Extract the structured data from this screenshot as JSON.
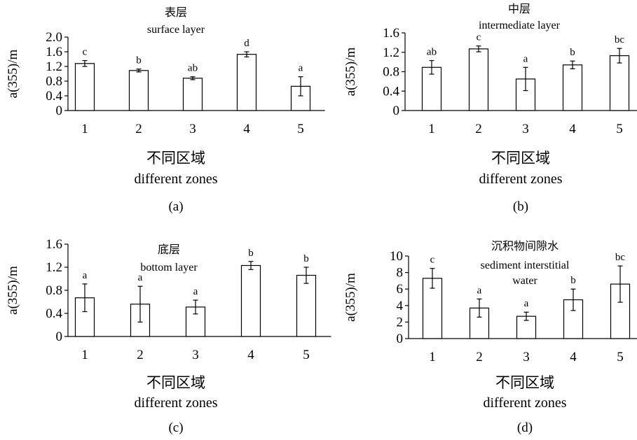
{
  "chart_data": [
    {
      "panel": "(a)",
      "type": "bar",
      "title": "表层",
      "title_en": "surface layer",
      "xlabel": "不同区域",
      "xlabel_en": "different zones",
      "ylabel": "a(355)/m",
      "categories": [
        "1",
        "2",
        "3",
        "4",
        "5"
      ],
      "values": [
        1.28,
        1.09,
        0.88,
        1.53,
        0.66
      ],
      "errors": [
        0.08,
        0.04,
        0.04,
        0.07,
        0.26
      ],
      "significance": [
        "c",
        "b",
        "ab",
        "d",
        "a"
      ],
      "ylim": [
        0,
        2.0
      ],
      "yticks": [
        "0",
        "0.4",
        "0.8",
        "1.2",
        "1.6",
        "2.0"
      ],
      "grid": false,
      "legend": "none"
    },
    {
      "panel": "(b)",
      "type": "bar",
      "title": "中层",
      "title_en": "intermediate layer",
      "xlabel": "不同区域",
      "xlabel_en": "different zones",
      "ylabel": "a(355)/m",
      "categories": [
        "1",
        "2",
        "3",
        "4",
        "5"
      ],
      "values": [
        0.89,
        1.27,
        0.65,
        0.94,
        1.13
      ],
      "errors": [
        0.14,
        0.06,
        0.24,
        0.08,
        0.15
      ],
      "significance": [
        "ab",
        "c",
        "a",
        "b",
        "bc"
      ],
      "ylim": [
        0,
        1.6
      ],
      "yticks": [
        "0",
        "0.4",
        "0.8",
        "1.2",
        "1.6"
      ],
      "grid": false,
      "legend": "none"
    },
    {
      "panel": "(c)",
      "type": "bar",
      "title": "底层",
      "title_en": "bottom layer",
      "xlabel": "不同区域",
      "xlabel_en": "different zones",
      "ylabel": "a(355)/m",
      "categories": [
        "1",
        "2",
        "3",
        "4",
        "5"
      ],
      "values": [
        0.67,
        0.56,
        0.51,
        1.23,
        1.06
      ],
      "errors": [
        0.24,
        0.31,
        0.12,
        0.07,
        0.14
      ],
      "significance": [
        "a",
        "a",
        "a",
        "b",
        "b"
      ],
      "ylim": [
        0,
        1.6
      ],
      "yticks": [
        "0",
        "0.4",
        "0.8",
        "1.2",
        "1.6"
      ],
      "grid": false,
      "legend": "none"
    },
    {
      "panel": "(d)",
      "type": "bar",
      "title": "沉积物间隙水",
      "title_en": "sediment interstitial water",
      "xlabel": "不同区域",
      "xlabel_en": "different zones",
      "ylabel": "a(355)/m",
      "categories": [
        "1",
        "2",
        "3",
        "4",
        "5"
      ],
      "values": [
        7.3,
        3.7,
        2.7,
        4.7,
        6.6
      ],
      "errors": [
        1.2,
        1.1,
        0.5,
        1.3,
        2.2
      ],
      "significance": [
        "c",
        "a",
        "a",
        "b",
        "bc"
      ],
      "ylim": [
        0,
        10
      ],
      "yticks": [
        "0",
        "2",
        "4",
        "6",
        "8",
        "10"
      ],
      "grid": false,
      "legend": "none"
    }
  ]
}
